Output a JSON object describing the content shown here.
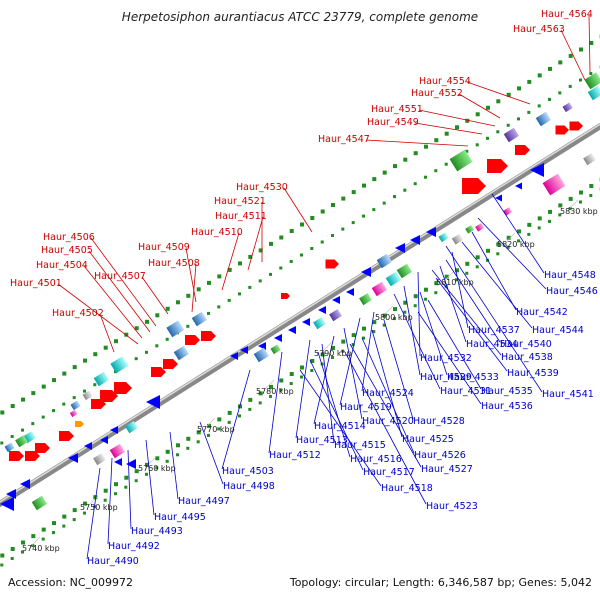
{
  "title": "Herpetosiphon aurantiacus ATCC 23779, complete genome",
  "footer": {
    "accession": "Accession: NC_009972",
    "topology": "Topology: circular; Length: 6,346,587 bp; Genes: 5,042"
  },
  "colors": {
    "plus_strand_label": "#cc0000",
    "minus_strand_label": "#0000cc",
    "plus_strand_gene": "#ff0000",
    "minus_strand_gene": "#0000ff",
    "backbone": "#999999",
    "ticks": "#228b22"
  },
  "kbp_ticks": [
    "5740 kbp",
    "5750 kbp",
    "5760 kbp",
    "5770 kbp",
    "5780 kbp",
    "5790 kbp",
    "5800 kbp",
    "5810 kbp",
    "5820 kbp",
    "5830 kbp"
  ],
  "genes_plus": [
    "Haur_4564",
    "Haur_4563",
    "Haur_4554",
    "Haur_4552",
    "Haur_4551",
    "Haur_4549",
    "Haur_4547",
    "Haur_4530",
    "Haur_4521",
    "Haur_4511",
    "Haur_4510",
    "Haur_4509",
    "Haur_4508",
    "Haur_4507",
    "Haur_4506",
    "Haur_4505",
    "Haur_4504",
    "Haur_4501",
    "Haur_4502"
  ],
  "genes_minus": [
    "Haur_4548",
    "Haur_4546",
    "Haur_4542",
    "Haur_4544",
    "Haur_4537",
    "Haur_4540",
    "Haur_4534",
    "Haur_4538",
    "Haur_4532",
    "Haur_4539",
    "Haur_4529",
    "Haur_4533",
    "Haur_4531",
    "Haur_4535",
    "Haur_4541",
    "Haur_4536",
    "Haur_4524",
    "Haur_4519",
    "Haur_4520",
    "Haur_4528",
    "Haur_4514",
    "Haur_4525",
    "Haur_4513",
    "Haur_4515",
    "Haur_4526",
    "Haur_4512",
    "Haur_4516",
    "Haur_4527",
    "Haur_4517",
    "Haur_4503",
    "Haur_4518",
    "Haur_4498",
    "Haur_4497",
    "Haur_4495",
    "Haur_4523",
    "Haur_4493",
    "Haur_4492",
    "Haur_4490"
  ]
}
